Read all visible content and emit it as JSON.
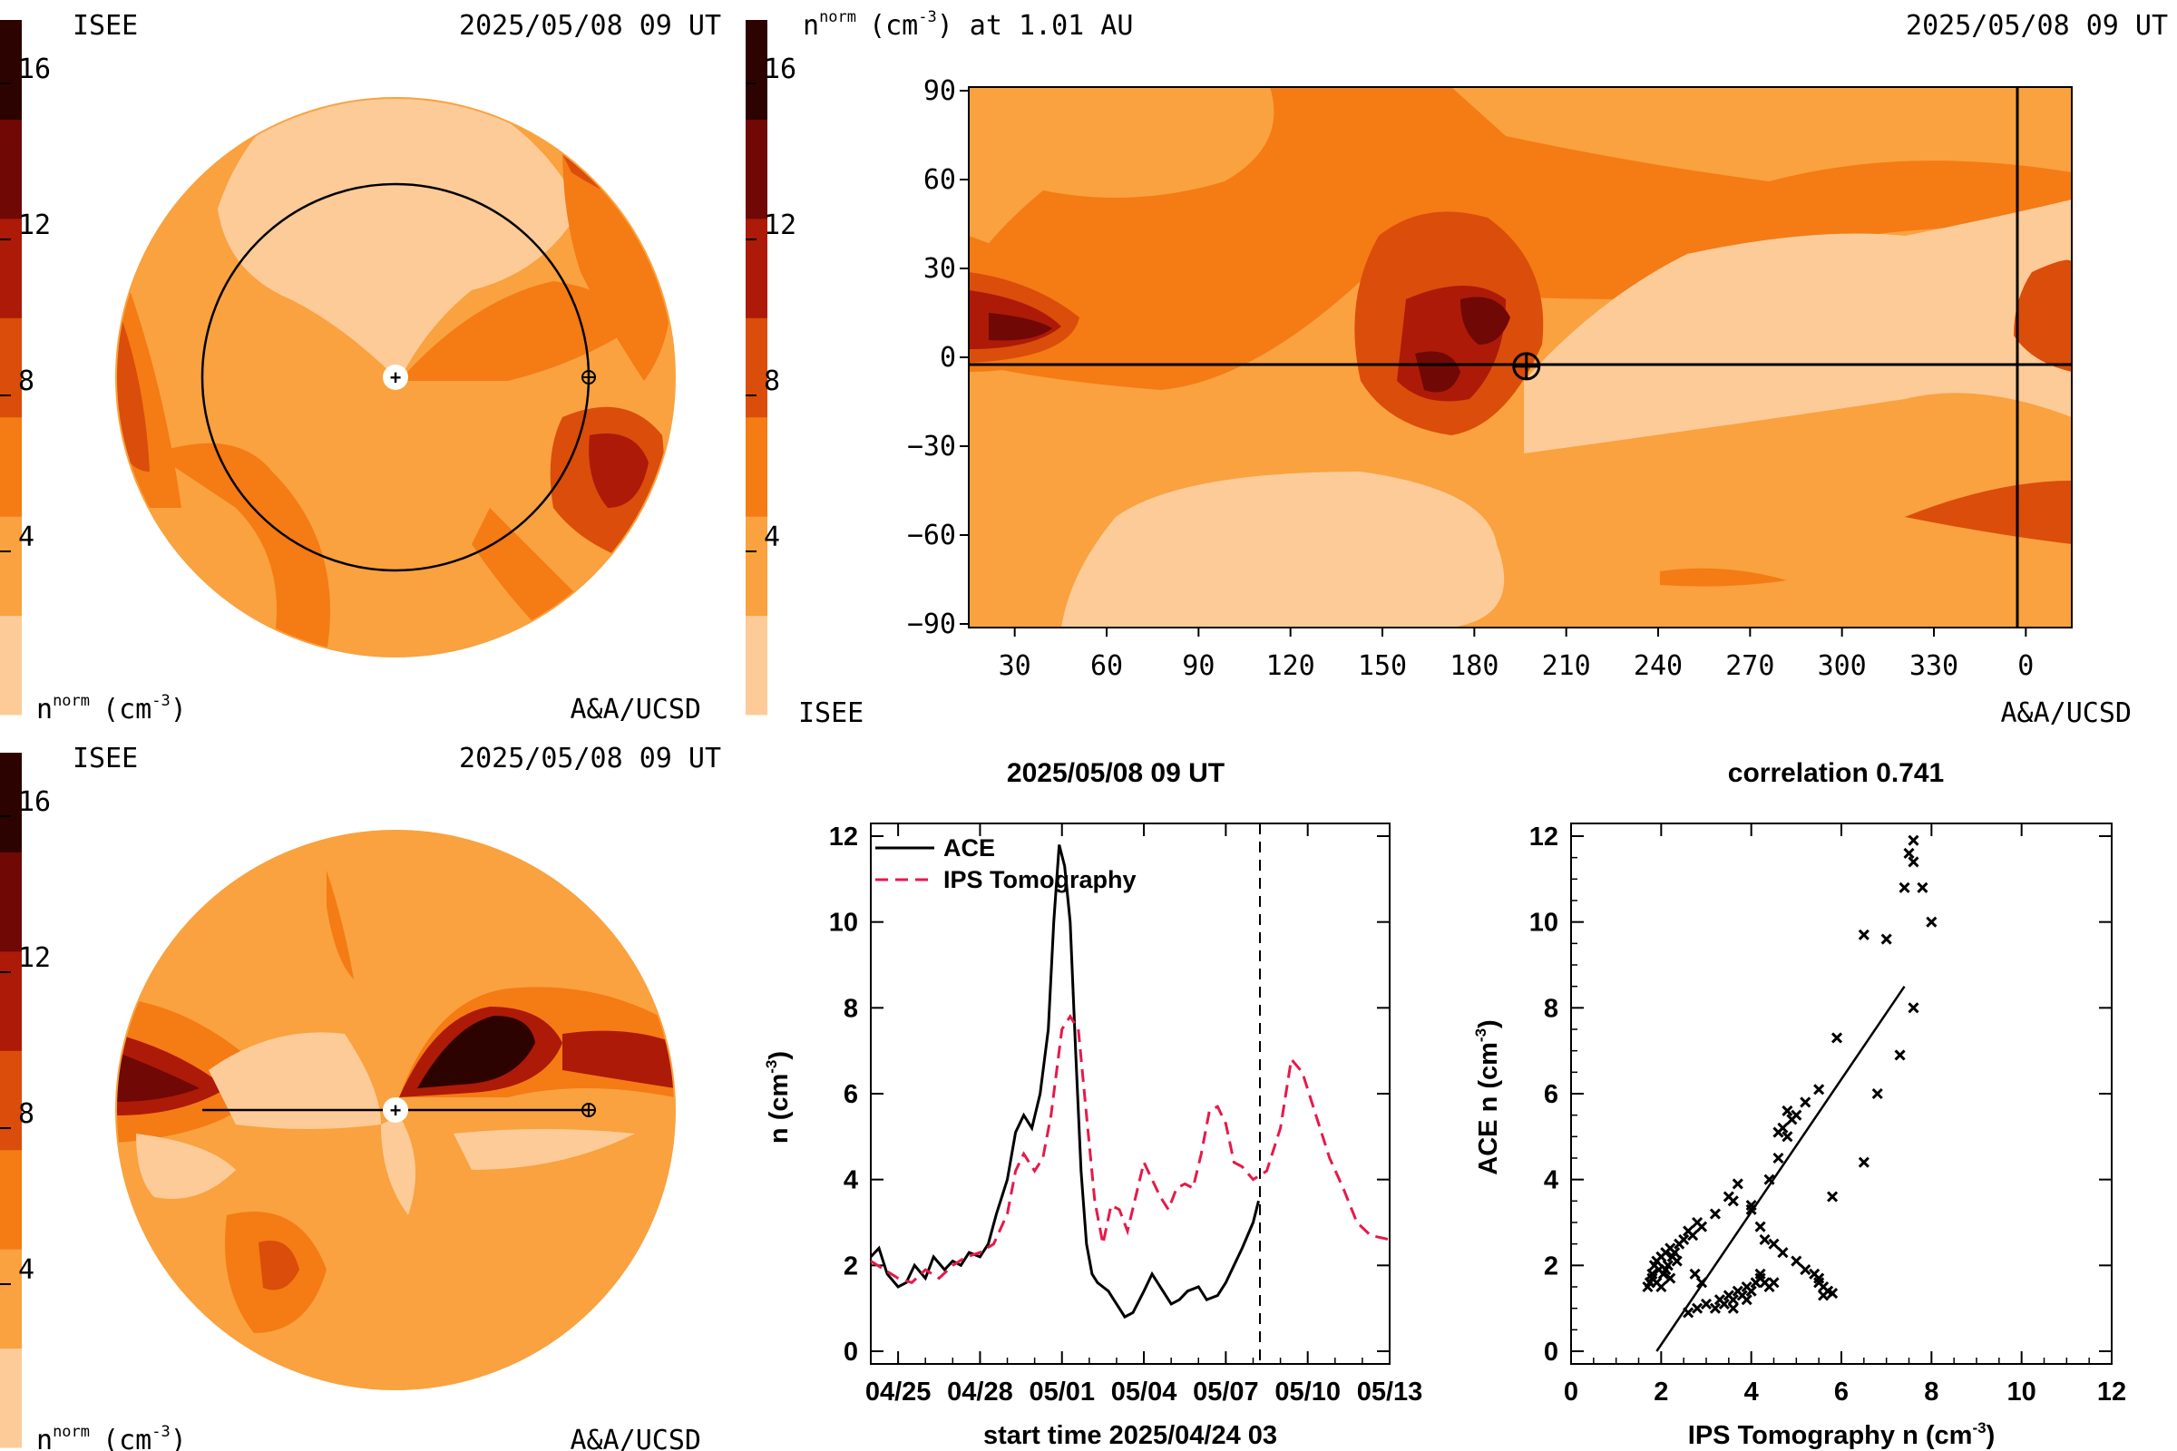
{
  "colors": {
    "levels": [
      "#fdcb98",
      "#f9a23f",
      "#f57b14",
      "#db4d0a",
      "#ad1a08",
      "#700806",
      "#2d0300"
    ],
    "bg_orange": "#f9a23f",
    "ips_line": "#e6194b",
    "ace_line": "#000000"
  },
  "colorbar_ticks": [
    "16",
    "12",
    "8",
    "4"
  ],
  "panels": {
    "top_left": {
      "org": "ISEE",
      "date": "2025/05/08 09 UT",
      "unit_base": "n",
      "unit_sup": "norm",
      "unit_tail": "(cm",
      "unit_exp": "-3",
      "unit_close": ")",
      "credit": "A&A/UCSD"
    },
    "bottom_left": {
      "org": "ISEE",
      "date": "2025/05/08 09 UT",
      "unit_base": "n",
      "unit_sup": "norm",
      "unit_tail": "(cm",
      "unit_exp": "-3",
      "unit_close": ")",
      "credit": "A&A/UCSD"
    },
    "top_right": {
      "title_base": "n",
      "title_sup": "norm",
      "title_tail": "(cm",
      "title_exp": "-3",
      "title_close": ") at 1.01 AU",
      "date": "2025/05/08 09 UT",
      "org": "ISEE",
      "credit": "A&A/UCSD"
    }
  },
  "chart_data": [
    {
      "type": "heatmap",
      "panel": "synoptic-map",
      "x_ticks": [
        "30",
        "60",
        "90",
        "120",
        "150",
        "180",
        "210",
        "240",
        "270",
        "300",
        "330",
        "0"
      ],
      "y_ticks": [
        "90",
        "60",
        "30",
        "0",
        "−30",
        "−60",
        "−90"
      ],
      "earth_marker": {
        "longitude": 197,
        "latitude": -3
      },
      "current_longitude_line": 0
    },
    {
      "type": "line",
      "title": "2025/05/08 09 UT",
      "xlabel": "start time 2025/04/24 03",
      "ylabel_base": "n (cm",
      "ylabel_exp": "-3",
      "ylabel_close": ")",
      "x_ticks": [
        "04/25",
        "04/28",
        "05/01",
        "05/04",
        "05/07",
        "05/10",
        "05/13"
      ],
      "y_ticks": [
        "0",
        "2",
        "4",
        "6",
        "8",
        "10",
        "12"
      ],
      "xlim_days": [
        0,
        19
      ],
      "ylim": [
        0,
        12
      ],
      "now_day": 14.25,
      "series": [
        {
          "name": "ACE",
          "style": "solid",
          "x": [
            0,
            0.3,
            0.6,
            1.0,
            1.3,
            1.6,
            2.0,
            2.3,
            2.7,
            3.0,
            3.3,
            3.6,
            4.0,
            4.3,
            4.6,
            5.0,
            5.3,
            5.6,
            5.9,
            6.2,
            6.5,
            6.7,
            6.9,
            7.1,
            7.3,
            7.5,
            7.7,
            7.9,
            8.1,
            8.3,
            8.5,
            8.7,
            8.9,
            9.1,
            9.3,
            9.6,
            10.0,
            10.3,
            10.7,
            11.0,
            11.3,
            11.6,
            12.0,
            12.3,
            12.7,
            13.0,
            13.3,
            13.6,
            14.0,
            14.2
          ],
          "y": [
            2.2,
            2.4,
            1.8,
            1.5,
            1.6,
            2.0,
            1.7,
            2.2,
            1.9,
            2.1,
            2.0,
            2.3,
            2.2,
            2.5,
            3.2,
            4.0,
            5.1,
            5.5,
            5.2,
            6.0,
            7.5,
            10.0,
            11.8,
            11.3,
            10.0,
            7.0,
            4.2,
            2.5,
            1.8,
            1.6,
            1.5,
            1.4,
            1.2,
            1.0,
            0.8,
            0.9,
            1.4,
            1.8,
            1.4,
            1.1,
            1.2,
            1.4,
            1.5,
            1.2,
            1.3,
            1.6,
            2.0,
            2.4,
            3.0,
            3.5
          ]
        },
        {
          "name": "IPS Tomography",
          "style": "dashed",
          "x": [
            0,
            0.5,
            1.0,
            1.5,
            2.0,
            2.5,
            3.0,
            3.5,
            4.0,
            4.5,
            5.0,
            5.3,
            5.6,
            6.0,
            6.3,
            6.6,
            7.0,
            7.3,
            7.6,
            7.9,
            8.2,
            8.5,
            8.8,
            9.1,
            9.4,
            9.7,
            10.0,
            10.3,
            10.6,
            10.9,
            11.2,
            11.5,
            11.8,
            12.1,
            12.4,
            12.7,
            13.0,
            13.3,
            13.6,
            14.0,
            14.5,
            15.0,
            15.4,
            15.8,
            16.3,
            16.8,
            17.3,
            17.8,
            18.3,
            19.0
          ],
          "y": [
            2.1,
            1.9,
            1.7,
            1.6,
            1.9,
            1.7,
            2.0,
            2.2,
            2.3,
            2.5,
            3.2,
            4.2,
            4.6,
            4.2,
            4.5,
            5.5,
            7.5,
            7.8,
            7.5,
            5.5,
            3.5,
            2.5,
            3.4,
            3.3,
            2.8,
            3.6,
            4.4,
            4.0,
            3.6,
            3.3,
            3.8,
            3.9,
            3.8,
            4.6,
            5.6,
            5.7,
            5.3,
            4.4,
            4.3,
            4.0,
            4.2,
            5.2,
            6.8,
            6.5,
            5.5,
            4.5,
            3.8,
            3.0,
            2.7,
            2.6
          ]
        }
      ]
    },
    {
      "type": "scatter",
      "title": "correlation 0.741",
      "xlabel_base": "IPS Tomography n (cm",
      "xlabel_exp": "-3",
      "xlabel_close": ")",
      "ylabel_base": "ACE n (cm",
      "ylabel_exp": "-3",
      "ylabel_close": ")",
      "x_ticks": [
        "0",
        "2",
        "4",
        "6",
        "8",
        "10",
        "12"
      ],
      "y_ticks": [
        "0",
        "2",
        "4",
        "6",
        "8",
        "10",
        "12"
      ],
      "xlim": [
        0,
        12
      ],
      "ylim": [
        0,
        12
      ],
      "fit_line": {
        "x": [
          1.9,
          7.4
        ],
        "y": [
          0,
          8.5
        ]
      },
      "points": [
        [
          1.7,
          1.5
        ],
        [
          1.75,
          1.6
        ],
        [
          1.8,
          1.8
        ],
        [
          1.85,
          2.0
        ],
        [
          1.9,
          2.1
        ],
        [
          1.8,
          1.7
        ],
        [
          1.95,
          1.9
        ],
        [
          2.0,
          2.2
        ],
        [
          2.05,
          1.8
        ],
        [
          2.1,
          2.3
        ],
        [
          2.15,
          2.0
        ],
        [
          2.2,
          2.4
        ],
        [
          2.25,
          2.2
        ],
        [
          2.3,
          2.3
        ],
        [
          2.35,
          2.1
        ],
        [
          2.4,
          2.5
        ],
        [
          1.9,
          1.6
        ],
        [
          2.0,
          1.5
        ],
        [
          2.1,
          1.9
        ],
        [
          2.2,
          1.7
        ],
        [
          2.5,
          2.6
        ],
        [
          2.6,
          2.8
        ],
        [
          2.7,
          2.7
        ],
        [
          2.8,
          3.0
        ],
        [
          2.9,
          2.9
        ],
        [
          2.75,
          1.8
        ],
        [
          2.9,
          1.6
        ],
        [
          3.2,
          3.2
        ],
        [
          3.5,
          3.6
        ],
        [
          3.7,
          3.9
        ],
        [
          2.6,
          0.9
        ],
        [
          2.8,
          1.0
        ],
        [
          3.0,
          1.1
        ],
        [
          3.2,
          1.0
        ],
        [
          3.3,
          1.2
        ],
        [
          3.4,
          1.1
        ],
        [
          3.5,
          1.3
        ],
        [
          3.6,
          1.2
        ],
        [
          3.7,
          1.4
        ],
        [
          3.8,
          1.3
        ],
        [
          3.9,
          1.5
        ],
        [
          4.0,
          1.4
        ],
        [
          4.1,
          1.6
        ],
        [
          4.2,
          1.7
        ],
        [
          4.3,
          1.6
        ],
        [
          4.4,
          1.5
        ],
        [
          4.2,
          1.8
        ],
        [
          3.6,
          1.0
        ],
        [
          3.9,
          1.2
        ],
        [
          4.5,
          1.6
        ],
        [
          4.0,
          3.4
        ],
        [
          4.2,
          2.9
        ],
        [
          4.3,
          2.6
        ],
        [
          4.5,
          2.5
        ],
        [
          4.7,
          2.3
        ],
        [
          5.0,
          2.1
        ],
        [
          5.2,
          1.9
        ],
        [
          5.4,
          1.8
        ],
        [
          5.5,
          1.6
        ],
        [
          5.6,
          1.5
        ],
        [
          5.7,
          1.4
        ],
        [
          5.6,
          1.3
        ],
        [
          5.8,
          1.35
        ],
        [
          5.5,
          1.7
        ],
        [
          4.4,
          4.0
        ],
        [
          4.6,
          4.5
        ],
        [
          4.8,
          5.0
        ],
        [
          4.7,
          5.2
        ],
        [
          4.9,
          5.4
        ],
        [
          4.8,
          5.6
        ],
        [
          4.6,
          5.1
        ],
        [
          5.0,
          5.5
        ],
        [
          5.2,
          5.8
        ],
        [
          5.5,
          6.1
        ],
        [
          5.9,
          7.3
        ],
        [
          6.5,
          4.4
        ],
        [
          5.8,
          3.6
        ],
        [
          6.5,
          9.7
        ],
        [
          7.0,
          9.6
        ],
        [
          6.8,
          6.0
        ],
        [
          7.3,
          6.9
        ],
        [
          7.4,
          10.8
        ],
        [
          7.6,
          8.0
        ],
        [
          7.6,
          11.4
        ],
        [
          7.5,
          11.6
        ],
        [
          7.6,
          11.9
        ],
        [
          7.8,
          10.8
        ],
        [
          8.0,
          10.0
        ],
        [
          3.6,
          3.5
        ],
        [
          4.0,
          3.3
        ]
      ]
    }
  ]
}
